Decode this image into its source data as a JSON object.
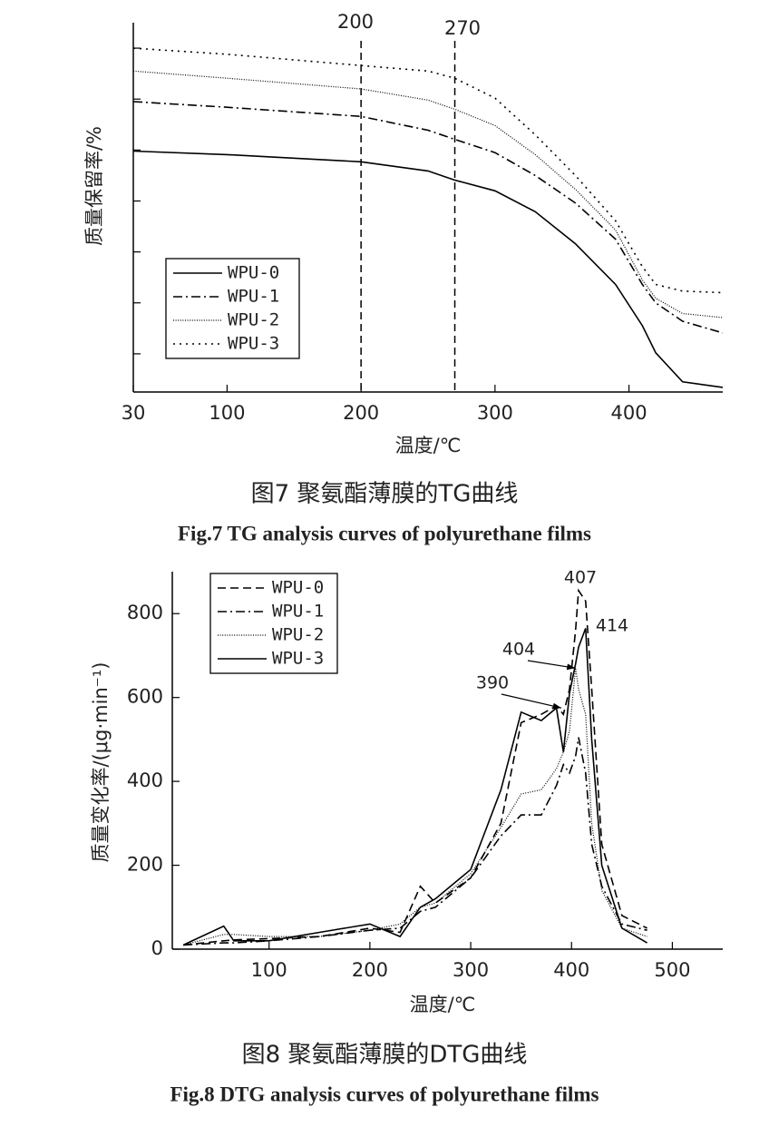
{
  "chart_data": [
    {
      "type": "line",
      "title": "图7 聚氨酯薄膜的TG曲线",
      "subtitle": "Fig.7 TG analysis curves of polyurethane films",
      "xlabel": "温度/℃",
      "ylabel": "质量保留率/%",
      "xlim": [
        30,
        470
      ],
      "xticks": [
        30,
        100,
        200,
        300,
        400
      ],
      "ylim": [
        0.25,
        7.5
      ],
      "yticks": [
        1,
        2,
        3,
        4,
        5,
        6,
        7
      ],
      "vlines": [
        200,
        270
      ],
      "legend": "lower left",
      "x": [
        30,
        100,
        200,
        250,
        270,
        300,
        330,
        360,
        390,
        410,
        420,
        440,
        470
      ],
      "series": [
        {
          "name": "WPU-0",
          "color": "#000000",
          "line_style": "solid",
          "values": [
            4.98,
            4.91,
            4.77,
            4.59,
            4.41,
            4.2,
            3.79,
            3.16,
            2.36,
            1.55,
            1.02,
            0.45,
            0.34
          ]
        },
        {
          "name": "WPU-1",
          "color": "#000000",
          "line_style": "dashdot",
          "values": [
            5.95,
            5.84,
            5.66,
            5.39,
            5.21,
            4.95,
            4.5,
            3.96,
            3.25,
            2.36,
            2.0,
            1.64,
            1.41
          ]
        },
        {
          "name": "WPU-2",
          "color": "#000000",
          "line_style": "finedot",
          "values": [
            6.55,
            6.41,
            6.2,
            5.98,
            5.8,
            5.48,
            4.91,
            4.23,
            3.43,
            2.45,
            2.09,
            1.79,
            1.71
          ]
        },
        {
          "name": "WPU-3",
          "color": "#000000",
          "line_style": "dotted",
          "values": [
            7.0,
            6.88,
            6.66,
            6.55,
            6.41,
            6.02,
            5.3,
            4.5,
            3.61,
            2.71,
            2.36,
            2.23,
            2.2
          ]
        }
      ]
    },
    {
      "type": "line",
      "title": "图8 聚氨酯薄膜的DTG曲线",
      "subtitle": "Fig.8 DTG analysis curves of polyurethane films",
      "xlabel": "温度/℃",
      "ylabel": "质量变化率/(μg·min⁻¹)",
      "xlim": [
        4,
        550
      ],
      "xticks": [
        100,
        200,
        300,
        400,
        500
      ],
      "ylim": [
        0,
        900
      ],
      "yticks": [
        0,
        200,
        400,
        600,
        800
      ],
      "legend": "upper left",
      "annotations": [
        "407",
        "414",
        "404",
        "390"
      ],
      "x": [
        15,
        55,
        65,
        100,
        150,
        200,
        230,
        250,
        265,
        300,
        330,
        350,
        370,
        385,
        392,
        398,
        404,
        407,
        414,
        420,
        430,
        450,
        475
      ],
      "series": [
        {
          "name": "WPU-0",
          "color": "#000000",
          "line_style": "dashed",
          "values": [
            10,
            20,
            22,
            25,
            30,
            50,
            40,
            150,
            110,
            170,
            300,
            540,
            560,
            580,
            560,
            620,
            760,
            855,
            830,
            620,
            250,
            80,
            50
          ]
        },
        {
          "name": "WPU-1",
          "color": "#000000",
          "line_style": "dashdot",
          "values": [
            10,
            15,
            15,
            20,
            30,
            45,
            50,
            90,
            100,
            170,
            270,
            320,
            320,
            390,
            440,
            420,
            460,
            505,
            420,
            250,
            150,
            60,
            45
          ]
        },
        {
          "name": "WPU-2",
          "color": "#000000",
          "line_style": "finedot",
          "values": [
            10,
            35,
            35,
            30,
            30,
            45,
            60,
            100,
            110,
            180,
            290,
            370,
            380,
            430,
            470,
            520,
            670,
            620,
            560,
            300,
            140,
            50,
            30
          ]
        },
        {
          "name": "WPU-3",
          "color": "#000000",
          "line_style": "solid",
          "values": [
            10,
            55,
            20,
            20,
            40,
            60,
            30,
            100,
            120,
            190,
            380,
            565,
            545,
            575,
            470,
            610,
            680,
            720,
            765,
            500,
            200,
            50,
            15
          ]
        }
      ]
    }
  ]
}
